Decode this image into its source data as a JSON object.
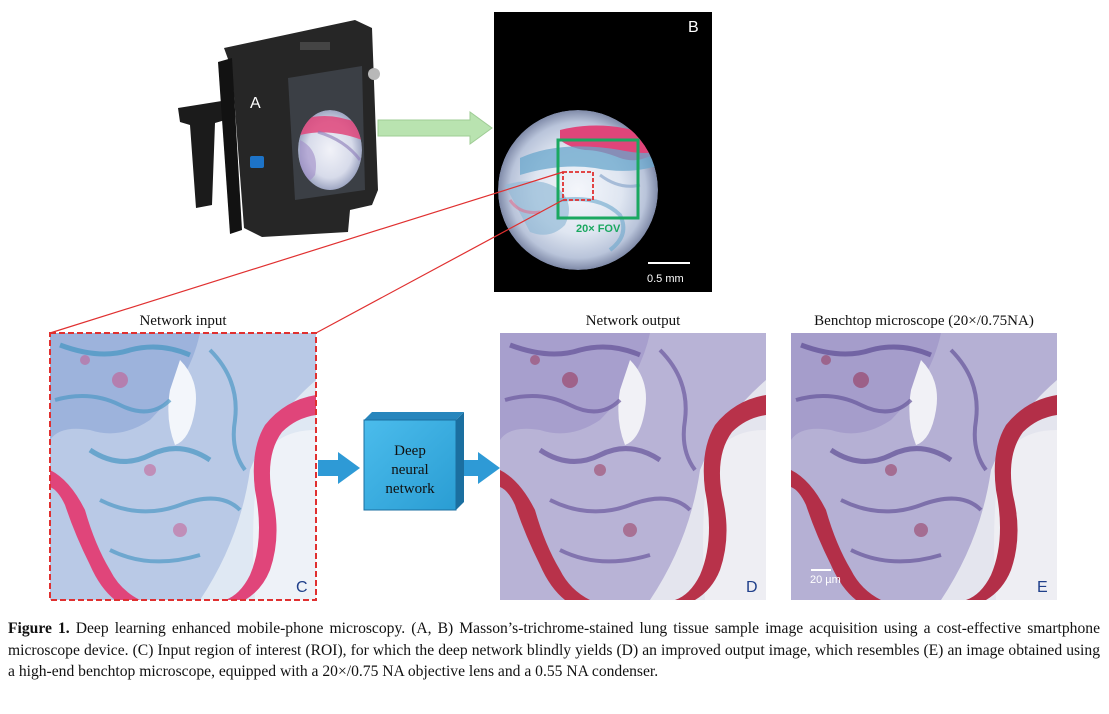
{
  "panels": {
    "a_label": "A",
    "b_label": "B",
    "c_label": "C",
    "d_label": "D",
    "e_label": "E",
    "fov_label": "20× FOV",
    "scale_b": "0.5 mm",
    "scale_e": "20 µm",
    "title_input": "Network input",
    "title_output": "Network output",
    "title_benchtop": "Benchtop microscope (20×/0.75NA)"
  },
  "network_box": {
    "line1": "Deep",
    "line2": "neural",
    "line3": "network"
  },
  "caption": {
    "label": "Figure 1.",
    "text": " Deep learning enhanced mobile-phone microscopy. (A, B) Masson’s-trichrome-stained lung tissue sample image acquisition using a cost-effective smartphone microscope device. (C) Input region of interest (ROI), for which the deep network blindly yields (D) an improved output image, which resembles (E) an image obtained using a high-end benchtop microscope, equipped with a 20×/0.75 NA objective lens and a 0.55 NA condenser."
  },
  "colors": {
    "arrow_green": "#b9e3b0",
    "arrow_blue": "#2e9ad6",
    "box_blue": "#35aee3",
    "roi_red": "#e03030",
    "fov_green": "#1aa860",
    "tissue_pink": "#e0457a",
    "tissue_blue": "#5fa3c8",
    "stain_red": "#b8324a",
    "stain_purple": "#6b5a9e"
  }
}
